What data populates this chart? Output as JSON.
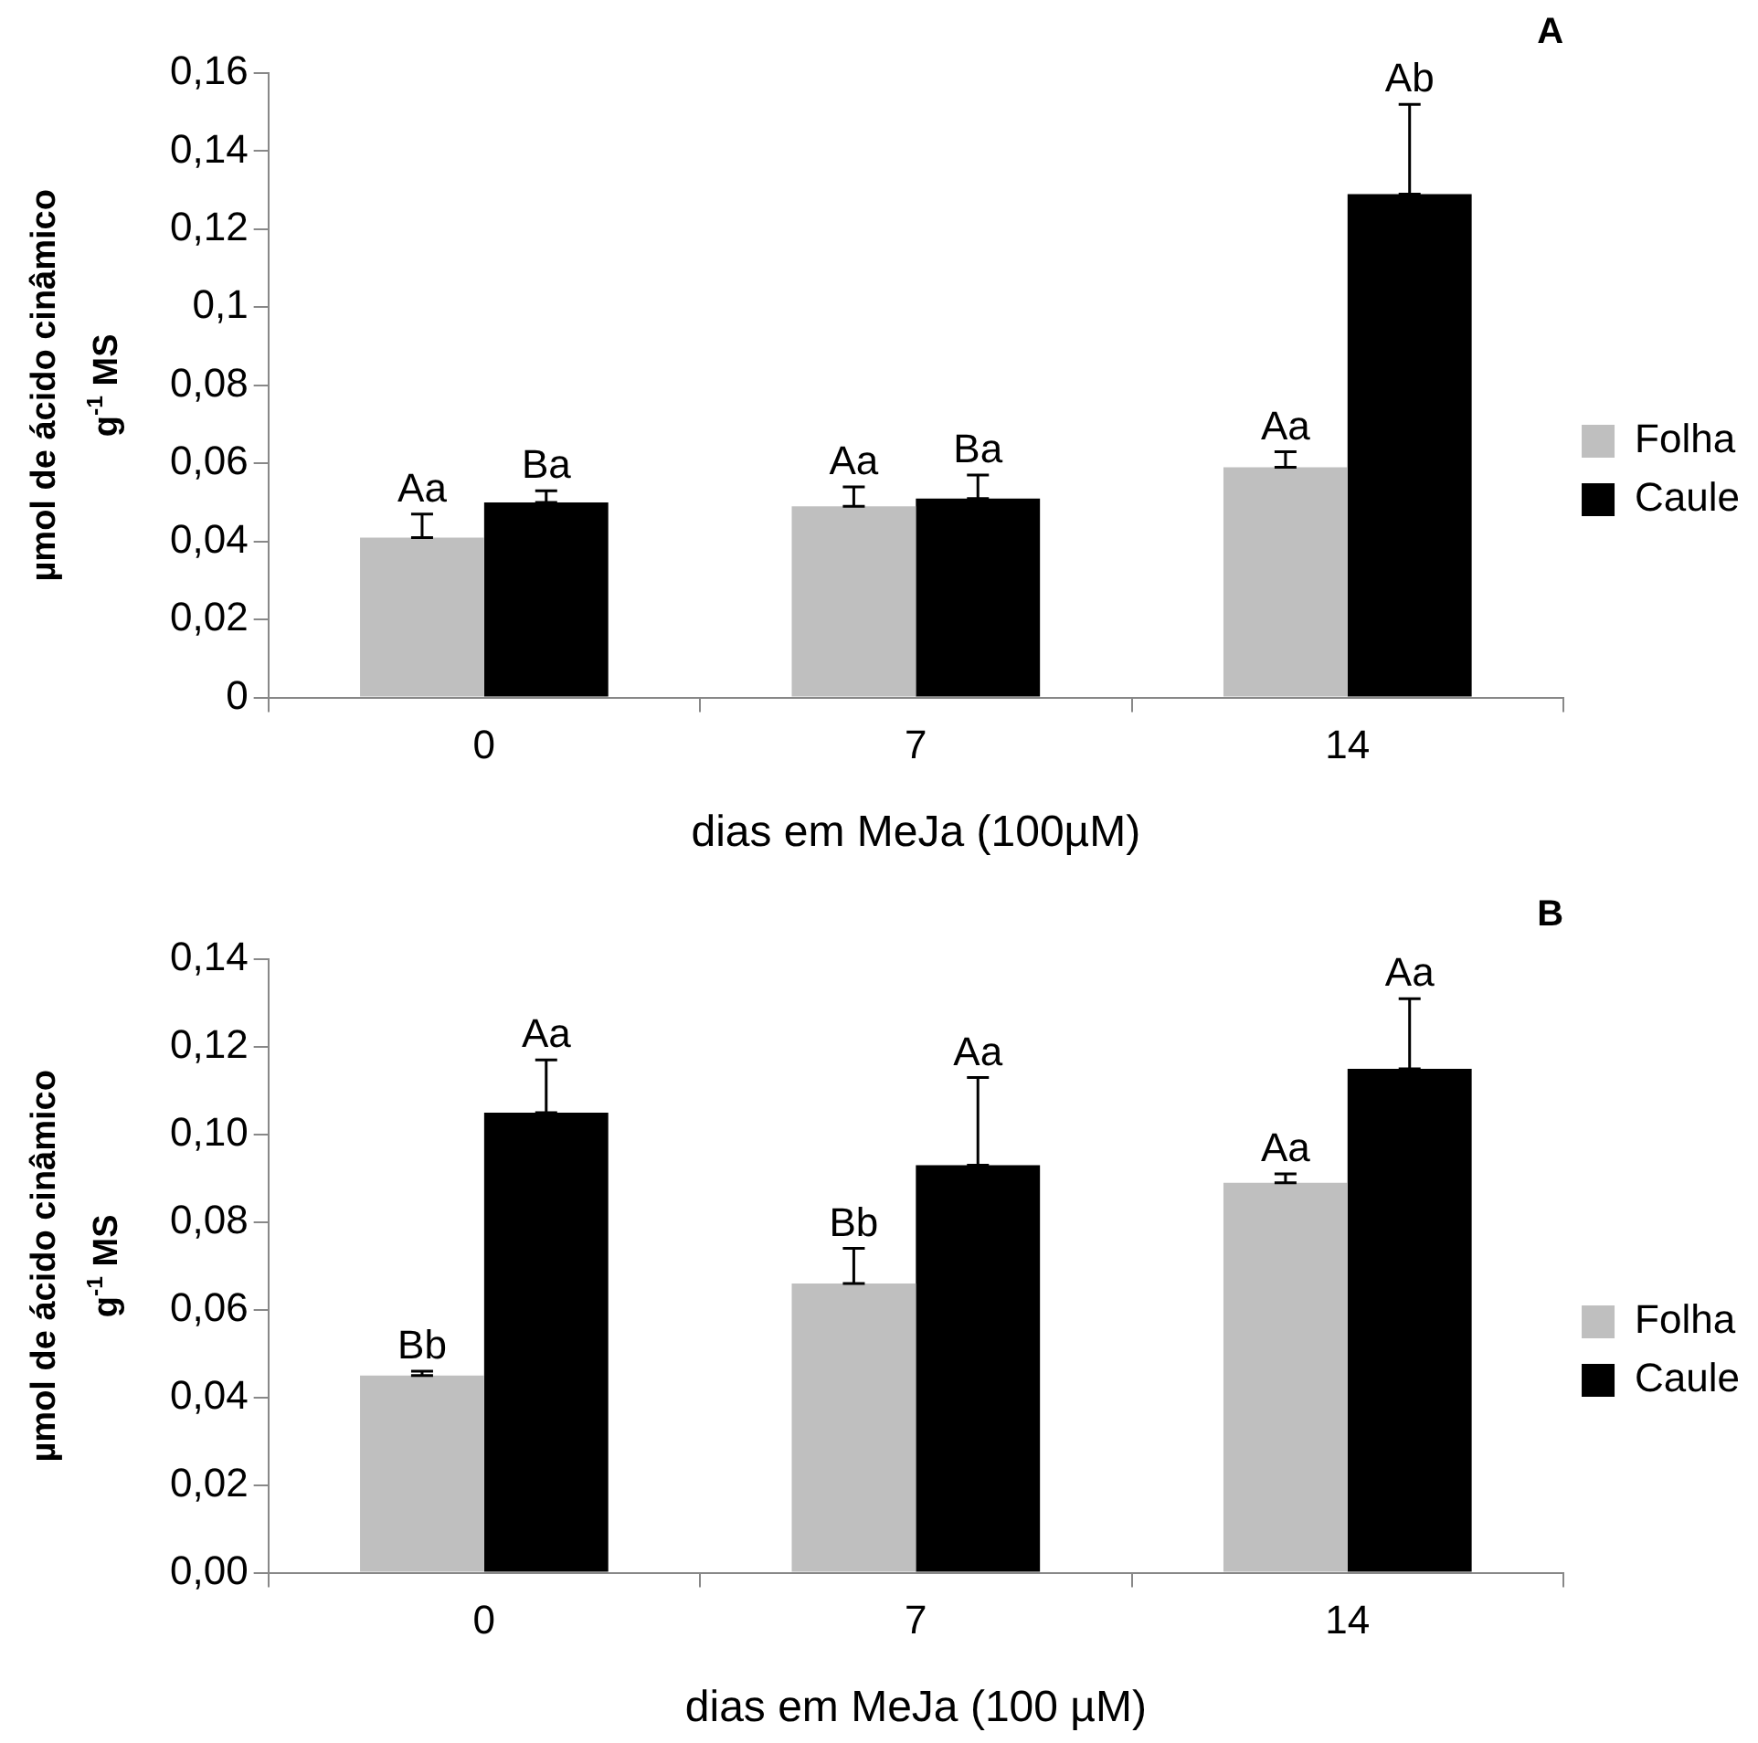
{
  "chart_data": [
    {
      "type": "bar",
      "title": "A",
      "xlabel": "dias em MeJa (100µM)",
      "ylabel": "µmol de ácido cinâmico g$^{-1}$ MS",
      "categories": [
        "0",
        "7",
        "14"
      ],
      "series": [
        {
          "name": "Folha",
          "color": "#bfbfbf",
          "values": [
            0.041,
            0.049,
            0.059
          ],
          "errors": [
            [
              0.041,
              0.047
            ],
            [
              0.049,
              0.054
            ],
            [
              0.059,
              0.063
            ]
          ],
          "value_labels": [
            "Aa",
            "Aa",
            "Aa"
          ]
        },
        {
          "name": "Caule",
          "color": "#000000",
          "values": [
            0.05,
            0.051,
            0.129
          ],
          "errors": [
            [
              0.05,
              0.053
            ],
            [
              0.051,
              0.057
            ],
            [
              0.129,
              0.152
            ]
          ],
          "value_labels": [
            "Ba",
            "Ba",
            "Ab"
          ]
        }
      ],
      "ylim": [
        0,
        0.16
      ],
      "yticks": [
        0,
        {
          "value": 0.02,
          "label": "0,02"
        },
        {
          "value": 0.04,
          "label": "0,04"
        },
        {
          "value": 0.06,
          "label": "0,06"
        },
        {
          "value": 0.08,
          "label": "0,08"
        },
        {
          "value": 0.1,
          "label": "0,1"
        },
        {
          "value": 0.12,
          "label": "0,12"
        },
        {
          "value": 0.14,
          "label": "0,14"
        },
        {
          "value": 0.16,
          "label": "0,16"
        }
      ],
      "grid": false,
      "legend": "right"
    },
    {
      "type": "bar",
      "title": "B",
      "xlabel": "dias em MeJa (100 µM)",
      "ylabel": "µmol de ácido cinâmico g$^{-1}$ MS",
      "categories": [
        "0",
        "7",
        "14"
      ],
      "series": [
        {
          "name": "Folha",
          "color": "#bfbfbf",
          "values": [
            0.045,
            0.066,
            0.089
          ],
          "errors": [
            [
              0.045,
              0.046
            ],
            [
              0.066,
              0.074
            ],
            [
              0.089,
              0.091
            ]
          ],
          "value_labels": [
            "Bb",
            "Bb",
            "Aa"
          ]
        },
        {
          "name": "Caule",
          "color": "#000000",
          "values": [
            0.105,
            0.093,
            0.115
          ],
          "errors": [
            [
              0.105,
              0.117
            ],
            [
              0.093,
              0.113
            ],
            [
              0.115,
              0.131
            ]
          ],
          "value_labels": [
            "Aa",
            "Aa",
            "Aa"
          ]
        }
      ],
      "ylim": [
        0,
        0.14
      ],
      "yticks": [
        {
          "value": 0,
          "label": "0,00"
        },
        {
          "value": 0.02,
          "label": "0,02"
        },
        {
          "value": 0.04,
          "label": "0,04"
        },
        {
          "value": 0.06,
          "label": "0,06"
        },
        {
          "value": 0.08,
          "label": "0,08"
        },
        {
          "value": 0.1,
          "label": "0,10"
        },
        {
          "value": 0.12,
          "label": "0,12"
        },
        {
          "value": 0.14,
          "label": "0,14"
        }
      ],
      "grid": false,
      "legend": "right"
    }
  ]
}
